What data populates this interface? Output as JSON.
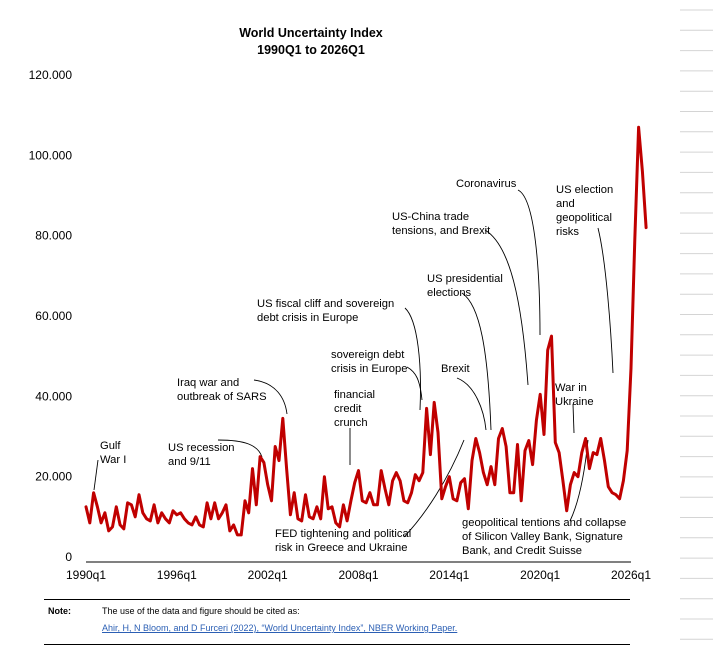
{
  "colors": {
    "line": "#c00000",
    "text": "#000000",
    "link": "#2b5fb4"
  },
  "note": {
    "label": "Note:",
    "text": "The use of the data and figure should be cited as:",
    "citation": "Ahir, H, N Bloom, and D Furceri (2022), “World Uncertainty Index”, NBER Working Paper."
  },
  "chart_data": {
    "type": "line",
    "title": "World Uncertainty Index",
    "subtitle": "1990Q1 to 2026Q1",
    "xlabel": "",
    "ylabel": "",
    "ylim": [
      0,
      120
    ],
    "xlim": [
      1990.0,
      2026.0
    ],
    "grid": false,
    "legend": "none",
    "y_ticks": [
      {
        "value": 0,
        "label": "0"
      },
      {
        "value": 20,
        "label": "20.000"
      },
      {
        "value": 40,
        "label": "40.000"
      },
      {
        "value": 60,
        "label": "60.000"
      },
      {
        "value": 80,
        "label": "80.000"
      },
      {
        "value": 100,
        "label": "100.000"
      },
      {
        "value": 120,
        "label": "120.000"
      }
    ],
    "x_ticks": [
      {
        "value": 1990.0,
        "label": "1990q1"
      },
      {
        "value": 1996.0,
        "label": "1996q1"
      },
      {
        "value": 2002.0,
        "label": "2002q1"
      },
      {
        "value": 2008.0,
        "label": "2008q1"
      },
      {
        "value": 2014.0,
        "label": "2014q1"
      },
      {
        "value": 2020.0,
        "label": "2020q1"
      },
      {
        "value": 2026.0,
        "label": "2026q1"
      }
    ],
    "series": [
      {
        "x_start": 1990.0,
        "x_step": 0.25,
        "values": [
          12.5,
          8.5,
          16,
          12.5,
          8.5,
          11,
          6.5,
          7.5,
          12.5,
          8,
          7,
          13.5,
          13,
          10,
          15.5,
          11,
          9.5,
          9,
          13,
          8.5,
          11,
          9.5,
          8.5,
          11.5,
          10.5,
          11,
          9.5,
          8.5,
          8,
          10,
          8,
          7.5,
          13.5,
          9.5,
          13.5,
          9.5,
          11,
          13,
          6.5,
          8,
          5.5,
          5.5,
          14,
          11,
          22,
          13,
          25,
          23.5,
          18,
          14,
          27.5,
          24,
          34.5,
          22,
          10.5,
          16,
          9.5,
          9,
          15.5,
          10,
          9.5,
          12.5,
          9.5,
          20,
          12,
          12.5,
          8.5,
          7.5,
          13,
          9,
          14,
          18.5,
          21.5,
          14,
          13.5,
          16,
          13,
          13,
          21.5,
          17,
          13,
          19,
          21,
          19,
          14,
          13.5,
          16,
          20.5,
          19,
          21,
          37,
          25.5,
          38.5,
          31,
          14.5,
          17.5,
          20,
          14.5,
          14,
          18.5,
          19.5,
          12,
          24,
          29.5,
          26,
          21,
          18,
          22.5,
          18,
          29.5,
          32,
          27.5,
          16,
          16,
          28,
          14,
          26.5,
          29,
          23,
          34,
          40.5,
          30.5,
          51.5,
          55,
          28.5,
          26,
          19,
          11.5,
          18,
          21,
          20,
          26,
          29.5,
          22,
          26,
          25.5,
          29.5,
          24,
          17.5,
          16,
          15.5,
          14.5,
          19,
          26.5,
          47,
          79,
          107,
          96,
          82
        ]
      }
    ],
    "annotations": [
      {
        "lines": [
          "Gulf",
          "War I"
        ]
      },
      {
        "lines": [
          "US recession",
          "and 9/11"
        ]
      },
      {
        "lines": [
          "Iraq war and",
          "outbreak of SARS"
        ]
      },
      {
        "lines": [
          "financial",
          "credit",
          "crunch"
        ]
      },
      {
        "lines": [
          "FED tightening and political",
          "risk in Greece and Ukraine"
        ]
      },
      {
        "lines": [
          "US fiscal cliff and sovereign",
          "debt crisis in Europe"
        ]
      },
      {
        "lines": [
          "sovereign debt",
          "crisis in Europe"
        ]
      },
      {
        "lines": [
          "Brexit"
        ]
      },
      {
        "lines": [
          "US presidential",
          "elections"
        ]
      },
      {
        "lines": [
          "US-China trade",
          "tensions, and Brexit"
        ]
      },
      {
        "lines": [
          "Coronavirus"
        ]
      },
      {
        "lines": [
          "War in",
          "Ukraine"
        ]
      },
      {
        "lines": [
          "geopolitical tentions and collapse",
          "of Silicon Valley Bank, Signature",
          "Bank, and Credit Suisse"
        ]
      },
      {
        "lines": [
          "US election",
          "and",
          "geopolitical",
          "risks"
        ]
      }
    ]
  }
}
